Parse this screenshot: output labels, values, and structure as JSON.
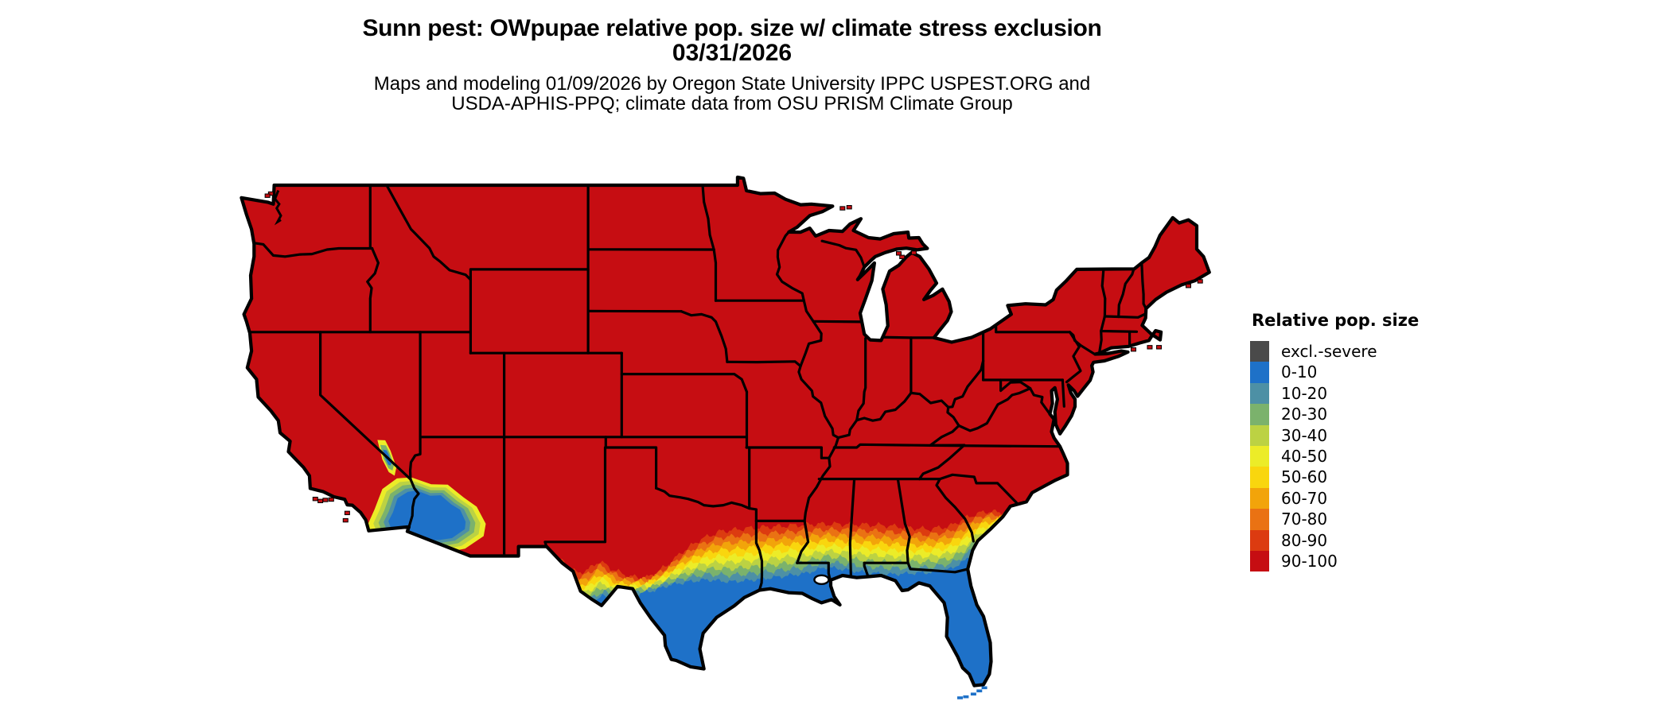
{
  "header": {
    "title": "Sunn pest: OWpupae relative pop. size w/ climate stress exclusion",
    "date": "03/31/2026",
    "subtitle_line1": "Maps and modeling 01/09/2026 by Oregon State University IPPC USPEST.ORG and",
    "subtitle_line2": "USDA-APHIS-PPQ; climate data from OSU PRISM Climate Group"
  },
  "legend": {
    "title": "Relative pop. size",
    "items": [
      {
        "label": "excl.-severe",
        "color": "#4a4a4a"
      },
      {
        "label": "0-10",
        "color": "#1e71c8"
      },
      {
        "label": "10-20",
        "color": "#4d90a5"
      },
      {
        "label": "20-30",
        "color": "#7bb26c"
      },
      {
        "label": "30-40",
        "color": "#bcd243"
      },
      {
        "label": "40-50",
        "color": "#ecec28"
      },
      {
        "label": "50-60",
        "color": "#f9d60e"
      },
      {
        "label": "60-70",
        "color": "#f2a40a"
      },
      {
        "label": "70-80",
        "color": "#ea7213"
      },
      {
        "label": "80-90",
        "color": "#dc3b10"
      },
      {
        "label": "90-100",
        "color": "#c60d12"
      }
    ]
  },
  "map": {
    "region": "Contiguous United States",
    "border_color": "#000000",
    "background_color": "#ffffff"
  }
}
